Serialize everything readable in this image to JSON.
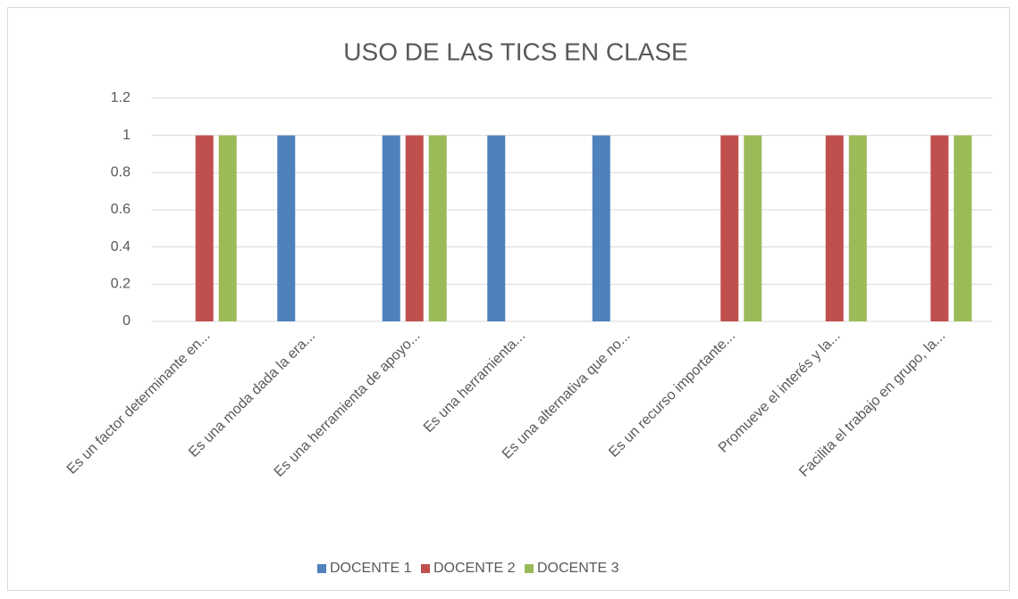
{
  "chart_data": {
    "type": "bar",
    "title": "USO DE LAS TICS EN CLASE",
    "categories": [
      "Es un factor determinante en...",
      "Es una moda dada la era...",
      "Es una herramienta de apoyo...",
      "Es una herramienta...",
      "Es una alternativa que no...",
      "Es un recurso importante...",
      "Promueve el interés y la...",
      "Facilita el trabajo en grupo, la..."
    ],
    "series": [
      {
        "name": "DOCENTE 1",
        "color": "#4f81bd",
        "values": [
          0,
          1,
          1,
          1,
          1,
          0,
          0,
          0
        ]
      },
      {
        "name": "DOCENTE 2",
        "color": "#c0504d",
        "values": [
          1,
          0,
          1,
          0,
          0,
          1,
          1,
          1
        ]
      },
      {
        "name": "DOCENTE 3",
        "color": "#9bbb59",
        "values": [
          1,
          0,
          1,
          0,
          0,
          1,
          1,
          1
        ]
      }
    ],
    "ylim": [
      0,
      1.2
    ],
    "yticks": [
      0,
      0.2,
      0.4,
      0.6,
      0.8,
      1,
      1.2
    ],
    "grid": true,
    "legend": "bottom"
  }
}
